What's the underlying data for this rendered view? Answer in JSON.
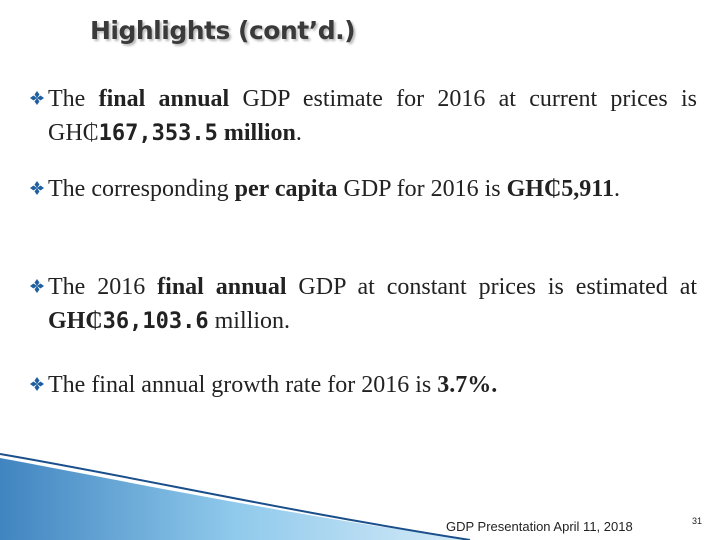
{
  "title": "Highlights (cont’d.)",
  "bullets": [
    {
      "runs": [
        {
          "text": "The ",
          "bold": false
        },
        {
          "text": "final annual",
          "bold": true
        },
        {
          "text": " GDP estimate for 2016 at current prices is GH₵",
          "bold": false
        },
        {
          "text": "167,353.5",
          "bold": true,
          "mono": true
        },
        {
          "text": " million",
          "bold": true
        },
        {
          "text": ".",
          "bold": false
        }
      ]
    },
    {
      "runs": [
        {
          "text": "The corresponding ",
          "bold": false
        },
        {
          "text": "per capita",
          "bold": true
        },
        {
          "text": " GDP for 2016 is ",
          "bold": false
        },
        {
          "text": "GH₵5,911",
          "bold": true
        },
        {
          "text": ".",
          "bold": false
        }
      ]
    },
    {
      "runs": [
        {
          "text": "The 2016 ",
          "bold": false
        },
        {
          "text": "final annual",
          "bold": true
        },
        {
          "text": " GDP at constant prices is estimated at ",
          "bold": false
        },
        {
          "text": "GH₵",
          "bold": true
        },
        {
          "text": "36,103.6",
          "bold": true,
          "mono": true
        },
        {
          "text": " million.",
          "bold": false
        }
      ]
    },
    {
      "runs": [
        {
          "text": "The final annual growth rate for 2016 is ",
          "bold": false
        },
        {
          "text": "3.7%.",
          "bold": true
        }
      ]
    }
  ],
  "footer": "GDP Presentation April 11, 2018",
  "page_number": "31"
}
